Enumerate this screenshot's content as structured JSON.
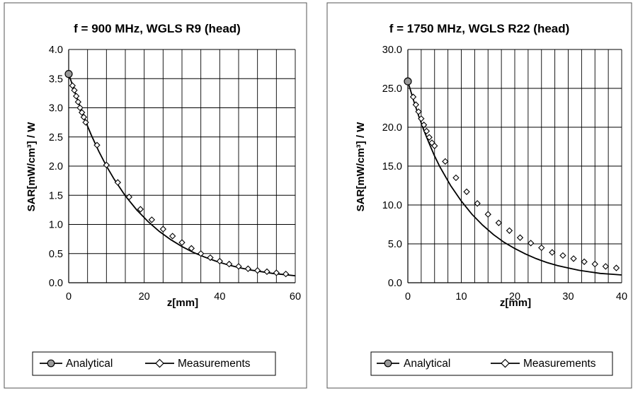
{
  "chart_data": [
    {
      "type": "line",
      "title": "f = 900 MHz, WGLS R9 (head)",
      "xlabel": "z[mm]",
      "ylabel": "SAR[mW/cm³] / W",
      "xlim": [
        0,
        60
      ],
      "ylim": [
        0,
        4.0
      ],
      "x_ticks": [
        "0",
        "20",
        "40",
        "60"
      ],
      "y_ticks": [
        "0.0",
        "0.5",
        "1.0",
        "1.5",
        "2.0",
        "2.5",
        "3.0",
        "3.5",
        "4.0"
      ],
      "grid": "on",
      "legend_position": "bottom",
      "series": [
        {
          "name": "Analytical",
          "marker": "circle",
          "x": [
            0,
            2,
            4,
            6,
            8,
            10,
            12,
            15,
            18,
            21,
            24,
            27,
            30,
            33,
            36,
            39,
            42,
            45,
            48,
            51,
            54,
            57,
            60
          ],
          "y": [
            3.58,
            3.2,
            2.84,
            2.53,
            2.25,
            2.0,
            1.78,
            1.49,
            1.25,
            1.05,
            0.88,
            0.74,
            0.62,
            0.52,
            0.44,
            0.37,
            0.31,
            0.26,
            0.22,
            0.19,
            0.16,
            0.14,
            0.12
          ]
        },
        {
          "name": "Measurements",
          "marker": "diamond",
          "x": [
            1,
            1.5,
            2,
            2.5,
            3,
            3.5,
            4,
            4.5,
            7.5,
            10,
            13,
            16,
            19,
            22,
            25,
            27.5,
            30,
            32.5,
            35,
            37.5,
            40,
            42.5,
            45,
            47.5,
            50,
            52.5,
            55,
            57.5
          ],
          "y": [
            3.38,
            3.3,
            3.2,
            3.1,
            3.0,
            2.92,
            2.84,
            2.75,
            2.36,
            2.02,
            1.72,
            1.47,
            1.26,
            1.08,
            0.92,
            0.8,
            0.69,
            0.59,
            0.5,
            0.43,
            0.37,
            0.32,
            0.28,
            0.24,
            0.21,
            0.19,
            0.17,
            0.15
          ]
        }
      ]
    },
    {
      "type": "line",
      "title": "f = 1750 MHz, WGLS R22 (head)",
      "xlabel": "z[mm]",
      "ylabel": "SAR[mW/cm³] / W",
      "xlim": [
        0,
        40
      ],
      "ylim": [
        0,
        30.0
      ],
      "x_ticks": [
        "0",
        "10",
        "20",
        "30",
        "40"
      ],
      "y_ticks": [
        "0.0",
        "5.0",
        "10.0",
        "15.0",
        "20.0",
        "25.0",
        "30.0"
      ],
      "grid": "on",
      "legend_position": "bottom",
      "series": [
        {
          "name": "Analytical",
          "marker": "circle",
          "x": [
            0,
            1,
            2,
            3,
            4,
            5,
            6,
            8,
            10,
            12,
            14,
            16,
            18,
            20,
            22,
            24,
            26,
            28,
            30,
            32,
            34,
            36,
            38,
            40
          ],
          "y": [
            25.9,
            23.6,
            21.5,
            19.6,
            17.9,
            16.3,
            14.9,
            12.5,
            10.5,
            8.8,
            7.4,
            6.2,
            5.2,
            4.4,
            3.7,
            3.1,
            2.6,
            2.2,
            1.9,
            1.6,
            1.4,
            1.2,
            1.1,
            1.0
          ]
        },
        {
          "name": "Measurements",
          "marker": "diamond",
          "x": [
            1,
            1.5,
            2,
            2.5,
            3,
            3.5,
            4,
            4.5,
            5,
            7,
            9,
            11,
            13,
            15,
            17,
            19,
            21,
            23,
            25,
            27,
            29,
            31,
            33,
            35,
            37,
            39
          ],
          "y": [
            23.9,
            22.9,
            22.0,
            21.1,
            20.3,
            19.5,
            18.7,
            18.0,
            17.6,
            15.6,
            13.5,
            11.7,
            10.2,
            8.8,
            7.7,
            6.7,
            5.8,
            5.1,
            4.5,
            3.9,
            3.5,
            3.1,
            2.7,
            2.4,
            2.1,
            1.9
          ]
        }
      ]
    }
  ]
}
